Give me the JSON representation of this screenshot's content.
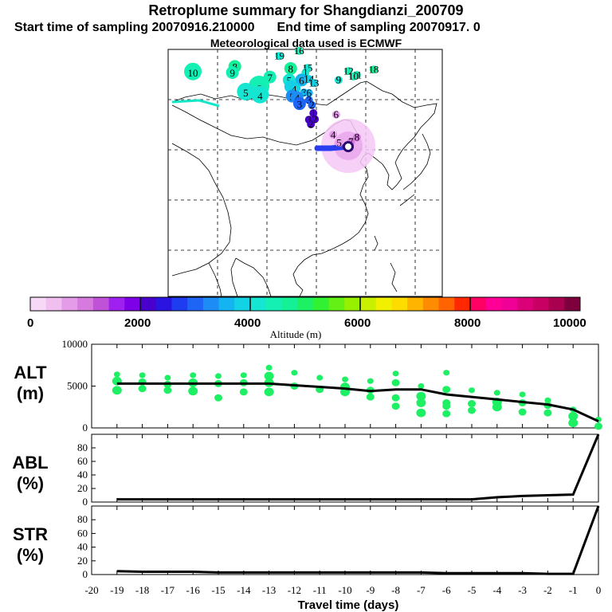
{
  "header": {
    "title": "Retroplume summary for Shangdianzi_200709",
    "start": "Start time of sampling 20070916.210000",
    "end": "End time of sampling 20070917.     0",
    "met": "Meteorological data used is ECMWF"
  },
  "colorbar": {
    "colors": [
      "#f7d8f7",
      "#f0bff0",
      "#e59ce8",
      "#d77ae0",
      "#c052d8",
      "#a020f0",
      "#7d00e6",
      "#4a00cc",
      "#2a14e0",
      "#1e3cf0",
      "#1e64f5",
      "#1e8cf5",
      "#14b4f0",
      "#14d2e6",
      "#14e6d2",
      "#14f0b4",
      "#14f096",
      "#1ef064",
      "#32f032",
      "#64f014",
      "#96f000",
      "#c8f000",
      "#f0f000",
      "#ffdc00",
      "#ffb400",
      "#ff8c00",
      "#ff6400",
      "#ff2800",
      "#ff0064",
      "#ff0096",
      "#f00096",
      "#dc0078",
      "#c80064",
      "#aa0050",
      "#7d003c"
    ],
    "tick_labels": [
      "0",
      "2000",
      "4000",
      "6000",
      "8000",
      "10000"
    ],
    "label": "Altitude (m)"
  },
  "map": {
    "station": "Shangdianzi",
    "markers": [
      {
        "t": "19",
        "lon": 110.5,
        "lat": 53.7,
        "alt": 4200,
        "size": 1
      },
      {
        "t": "16",
        "lon": 114.5,
        "lat": 54.7,
        "alt": 4500,
        "size": 1
      },
      {
        "t": "8",
        "lon": 101.5,
        "lat": 51.6,
        "alt": 4600,
        "size": 2
      },
      {
        "t": "8",
        "lon": 112.8,
        "lat": 51.2,
        "alt": 4600,
        "size": 2
      },
      {
        "t": "10",
        "lon": 93.0,
        "lat": 50.6,
        "alt": 4300,
        "size": 3
      },
      {
        "t": "9",
        "lon": 101.0,
        "lat": 50.4,
        "alt": 4300,
        "size": 2
      },
      {
        "t": "15",
        "lon": 116.2,
        "lat": 51.3,
        "alt": 4000,
        "size": 1
      },
      {
        "t": "1",
        "lon": 115.8,
        "lat": 50.4,
        "alt": 4000,
        "size": 1
      },
      {
        "t": "7",
        "lon": 108.6,
        "lat": 49.5,
        "alt": 4400,
        "size": 2
      },
      {
        "t": "6",
        "lon": 106.4,
        "lat": 47.7,
        "alt": 4300,
        "size": 4
      },
      {
        "t": "5",
        "lon": 112.5,
        "lat": 48.9,
        "alt": 4000,
        "size": 2
      },
      {
        "t": "6",
        "lon": 115.0,
        "lat": 48.9,
        "alt": 3600,
        "size": 2
      },
      {
        "t": "14",
        "lon": 116.5,
        "lat": 49.1,
        "alt": 3800,
        "size": 1
      },
      {
        "t": "13",
        "lon": 117.5,
        "lat": 48.3,
        "alt": 3800,
        "size": 1
      },
      {
        "t": "6",
        "lon": 112.8,
        "lat": 47.6,
        "alt": 3900,
        "size": 2
      },
      {
        "t": "4",
        "lon": 113.5,
        "lat": 47.2,
        "alt": 3900,
        "size": 2
      },
      {
        "t": "5",
        "lon": 103.7,
        "lat": 46.6,
        "alt": 4100,
        "size": 3
      },
      {
        "t": "4",
        "lon": 106.6,
        "lat": 46.0,
        "alt": 4200,
        "size": 3
      },
      {
        "t": "3",
        "lon": 115.5,
        "lat": 46.4,
        "alt": 3500,
        "size": 1
      },
      {
        "t": "6",
        "lon": 116.5,
        "lat": 46.3,
        "alt": 3600,
        "size": 1
      },
      {
        "t": "5",
        "lon": 113.1,
        "lat": 45.7,
        "alt": 3300,
        "size": 2
      },
      {
        "t": "4",
        "lon": 114.1,
        "lat": 45.4,
        "alt": 3300,
        "size": 2
      },
      {
        "t": "3",
        "lon": 116.5,
        "lat": 44.9,
        "alt": 3100,
        "size": 1
      },
      {
        "t": "3",
        "lon": 114.6,
        "lat": 44.2,
        "alt": 2900,
        "size": 2
      },
      {
        "t": "2",
        "lon": 117.1,
        "lat": 43.9,
        "alt": 2900,
        "size": 1
      },
      {
        "t": "1",
        "lon": 117.4,
        "lat": 42.3,
        "alt": 2100,
        "size": 1
      },
      {
        "t": "2",
        "lon": 117.7,
        "lat": 41.1,
        "alt": 2200,
        "size": 1
      },
      {
        "t": "3",
        "lon": 116.5,
        "lat": 41.0,
        "alt": 2100,
        "size": 1
      },
      {
        "t": "2",
        "lon": 116.9,
        "lat": 40.1,
        "alt": 2200,
        "size": 1
      },
      {
        "t": "9",
        "lon": 122.5,
        "lat": 48.9,
        "alt": 4100,
        "size": 1
      },
      {
        "t": "12",
        "lon": 124.5,
        "lat": 50.7,
        "alt": 4500,
        "size": 1
      },
      {
        "t": "18",
        "lon": 129.6,
        "lat": 51.0,
        "alt": 4600,
        "size": 1
      },
      {
        "t": "11",
        "lon": 126.2,
        "lat": 49.9,
        "alt": 4300,
        "size": 1
      },
      {
        "t": "10",
        "lon": 125.5,
        "lat": 49.6,
        "alt": 4300,
        "size": 1
      },
      {
        "t": "6",
        "lon": 122.0,
        "lat": 42.0,
        "alt": 700,
        "size": 1
      },
      {
        "t": "4",
        "lon": 121.4,
        "lat": 38.0,
        "alt": 700,
        "size": 1
      },
      {
        "t": "5",
        "lon": 122.6,
        "lat": 36.4,
        "alt": 700,
        "size": 1
      },
      {
        "t": "8",
        "lon": 126.2,
        "lat": 37.5,
        "alt": 1100,
        "size": 1
      },
      {
        "t": "7",
        "lon": 125.0,
        "lat": 36.6,
        "alt": 1100,
        "size": 1
      }
    ]
  },
  "chart_data": [
    {
      "type": "line",
      "title": "ALT (m)",
      "panel_label_top": "ALT",
      "panel_label_bottom": "(m)",
      "xlabel": "Travel time (days)",
      "xlim": [
        -20,
        0
      ],
      "ylim": [
        0,
        10000
      ],
      "yticks": [
        "0",
        "5000",
        "10000"
      ],
      "x": [
        -19,
        -18,
        -17,
        -16,
        -15,
        -14,
        -13,
        -12,
        -11,
        -10,
        -9,
        -8,
        -7,
        -6,
        -5,
        -4,
        -3,
        -2,
        -1,
        0
      ],
      "values": [
        5300,
        5300,
        5300,
        5300,
        5300,
        5300,
        5300,
        5100,
        4900,
        4700,
        4400,
        4600,
        4600,
        4000,
        3700,
        3400,
        3100,
        2800,
        2200,
        800
      ],
      "scatter_series": [
        {
          "x": -19,
          "values": [
            6400,
            5600,
            4500
          ]
        },
        {
          "x": -18,
          "values": [
            6300,
            5500,
            4700
          ]
        },
        {
          "x": -17,
          "values": [
            6000,
            5200,
            4500
          ]
        },
        {
          "x": -16,
          "values": [
            6300,
            5400,
            4400
          ]
        },
        {
          "x": -15,
          "values": [
            6200,
            5300,
            3600
          ]
        },
        {
          "x": -14,
          "values": [
            6300,
            5400,
            4300
          ]
        },
        {
          "x": -13,
          "values": [
            7200,
            6200,
            5400,
            4300
          ]
        },
        {
          "x": -12,
          "values": [
            6600,
            5000
          ]
        },
        {
          "x": -11,
          "values": [
            6000,
            4600
          ]
        },
        {
          "x": -10,
          "values": [
            5800,
            4900,
            4300
          ]
        },
        {
          "x": -9,
          "values": [
            5600,
            4500,
            3700
          ]
        },
        {
          "x": -8,
          "values": [
            6500,
            5400,
            3600,
            2600
          ]
        },
        {
          "x": -7,
          "values": [
            5000,
            3800,
            3000,
            1800
          ]
        },
        {
          "x": -6,
          "values": [
            6600,
            4600,
            3000,
            2600,
            1700
          ]
        },
        {
          "x": -5,
          "values": [
            4500,
            2900,
            2100
          ]
        },
        {
          "x": -4,
          "values": [
            4200,
            3100,
            2500
          ]
        },
        {
          "x": -3,
          "values": [
            4000,
            3000,
            1900
          ]
        },
        {
          "x": -2,
          "values": [
            3300,
            2700,
            1800
          ]
        },
        {
          "x": -1,
          "values": [
            2200,
            1400,
            600
          ]
        },
        {
          "x": 0,
          "values": [
            1000,
            200
          ]
        }
      ]
    },
    {
      "type": "line",
      "title": "ABL (%)",
      "panel_label_top": "ABL",
      "panel_label_bottom": "(%)",
      "xlim": [
        -20,
        0
      ],
      "ylim": [
        0,
        100
      ],
      "yticks": [
        "0",
        "20",
        "40",
        "60",
        "80"
      ],
      "x": [
        -19,
        -18,
        -17,
        -16,
        -15,
        -14,
        -13,
        -12,
        -11,
        -10,
        -9,
        -8,
        -7,
        -6,
        -5,
        -4,
        -3,
        -2,
        -1,
        0
      ],
      "values": [
        4,
        4,
        4,
        4,
        4,
        4,
        4,
        4,
        4,
        4,
        4,
        4,
        4,
        4,
        4,
        7,
        9,
        10,
        11,
        100
      ]
    },
    {
      "type": "line",
      "title": "STR (%)",
      "panel_label_top": "STR",
      "panel_label_bottom": "(%)",
      "xlim": [
        -20,
        0
      ],
      "ylim": [
        0,
        100
      ],
      "yticks": [
        "0",
        "20",
        "40",
        "60",
        "80"
      ],
      "x": [
        -19,
        -18,
        -17,
        -16,
        -15,
        -14,
        -13,
        -12,
        -11,
        -10,
        -9,
        -8,
        -7,
        -6,
        -5,
        -4,
        -3,
        -2,
        -1,
        0
      ],
      "values": [
        5,
        4,
        4,
        4,
        3,
        3,
        3,
        3,
        3,
        3,
        3,
        3,
        3,
        2,
        2,
        2,
        2,
        1,
        1,
        100
      ]
    }
  ],
  "x_axis": {
    "ticks": [
      "-20",
      "-19",
      "-18",
      "-17",
      "-16",
      "-15",
      "-14",
      "-13",
      "-12",
      "-11",
      "-10",
      "-9",
      "-8",
      "-7",
      "-6",
      "-5",
      "-4",
      "-3",
      "-2",
      "-1",
      "0"
    ],
    "label": "Travel time (days)"
  }
}
